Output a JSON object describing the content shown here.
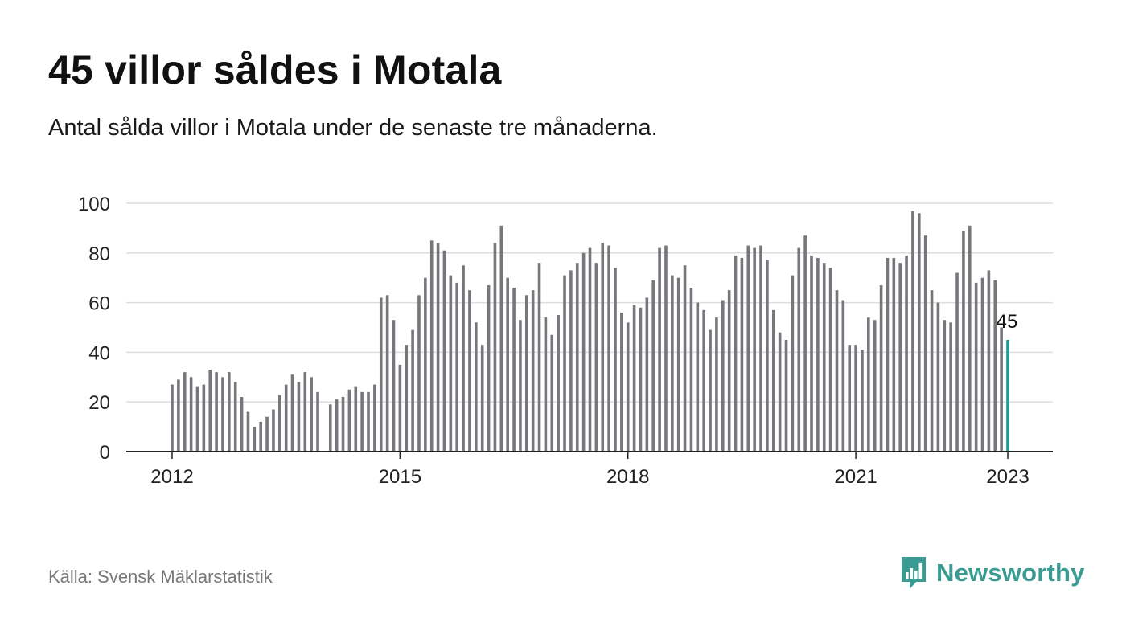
{
  "header": {
    "title": "45 villor såldes i Motala",
    "subtitle": "Antal sålda villor i Motala under de senaste tre månaderna."
  },
  "footer": {
    "source": "Källa: Svensk Mäklarstatistik",
    "brand": "Newsworthy"
  },
  "colors": {
    "bar": "#76767b",
    "highlight": "#1a9e94",
    "brand": "#3a9b92",
    "grid": "#dddddd",
    "axis": "#222222"
  },
  "chart_data": {
    "type": "bar",
    "title": "45 villor såldes i Motala",
    "subtitle": "Antal sålda villor i Motala under de senaste tre månaderna.",
    "xlabel": "",
    "ylabel": "",
    "x_start": "2012-01",
    "x_end": "2023-01",
    "x_ticks": [
      "2012",
      "2015",
      "2018",
      "2021",
      "2023"
    ],
    "ylim": [
      0,
      100
    ],
    "y_ticks": [
      0,
      20,
      40,
      60,
      80,
      100
    ],
    "grid": true,
    "legend": "none",
    "last_value_label": "45",
    "values": [
      27,
      29,
      32,
      30,
      26,
      27,
      33,
      32,
      30,
      32,
      28,
      22,
      16,
      10,
      12,
      14,
      17,
      23,
      27,
      31,
      28,
      32,
      30,
      24,
      null,
      19,
      21,
      22,
      25,
      26,
      24,
      24,
      27,
      62,
      63,
      53,
      35,
      43,
      49,
      63,
      70,
      85,
      84,
      81,
      71,
      68,
      75,
      65,
      52,
      43,
      67,
      84,
      91,
      70,
      66,
      53,
      63,
      65,
      76,
      54,
      47,
      55,
      71,
      73,
      76,
      80,
      82,
      76,
      84,
      83,
      74,
      56,
      52,
      59,
      58,
      62,
      69,
      82,
      83,
      71,
      70,
      75,
      66,
      60,
      57,
      49,
      54,
      61,
      65,
      79,
      78,
      83,
      82,
      83,
      77,
      57,
      48,
      45,
      71,
      82,
      87,
      79,
      78,
      76,
      74,
      65,
      61,
      43,
      43,
      41,
      54,
      53,
      67,
      78,
      78,
      76,
      79,
      97,
      96,
      87,
      65,
      60,
      53,
      52,
      72,
      89,
      91,
      68,
      70,
      73,
      69,
      50,
      45
    ]
  }
}
